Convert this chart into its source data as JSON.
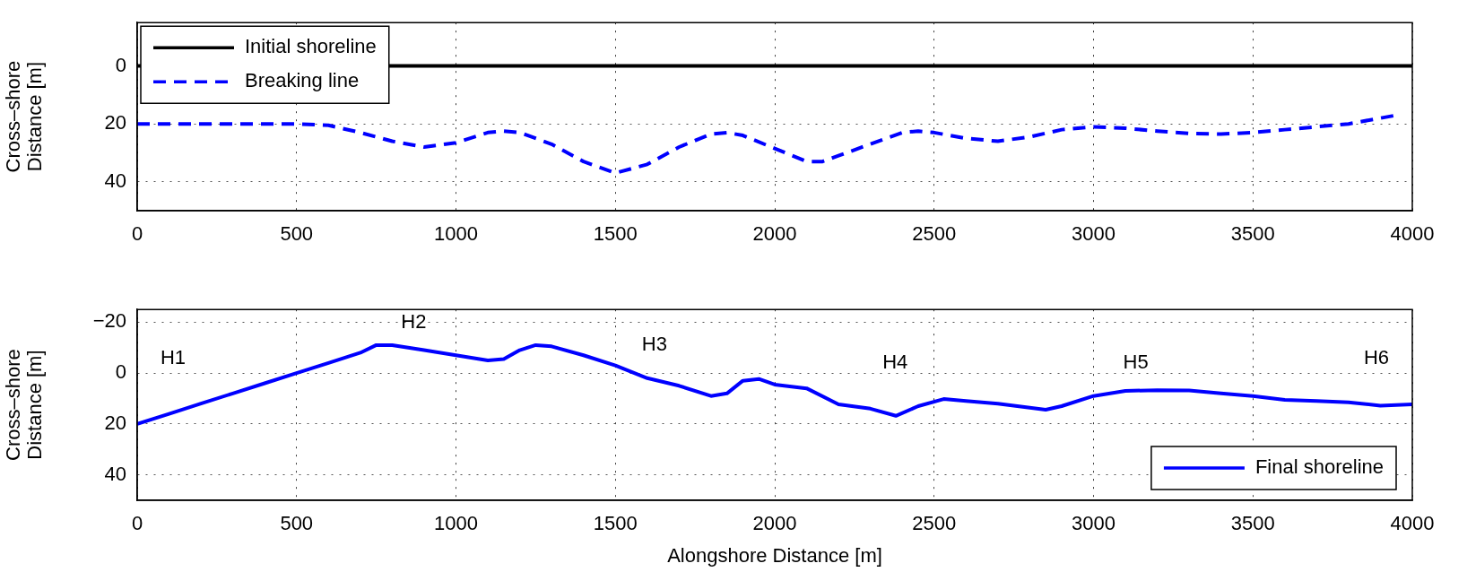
{
  "chart_data": [
    {
      "type": "line",
      "ylabel": "Cross–shore Distance [m]",
      "xlim": [
        0,
        4000
      ],
      "xticks": [
        0,
        500,
        1000,
        1500,
        2000,
        2500,
        3000,
        3500,
        4000
      ],
      "ylim": [
        50,
        -15
      ],
      "yticks": [
        0,
        20,
        40
      ],
      "grid": true,
      "legend": "top left",
      "marker": "none",
      "series": [
        {
          "name": "Initial shoreline",
          "color": "#000000",
          "line_style": "solid",
          "x": [
            0,
            4000
          ],
          "values": [
            0,
            0
          ]
        },
        {
          "name": "Breaking line",
          "color": "#0000ff",
          "line_style": "dashed",
          "x": [
            0,
            500,
            600,
            700,
            800,
            900,
            1000,
            1100,
            1150,
            1200,
            1300,
            1400,
            1500,
            1600,
            1700,
            1800,
            1850,
            1900,
            2000,
            2100,
            2150,
            2200,
            2300,
            2400,
            2450,
            2500,
            2600,
            2700,
            2800,
            2900,
            3000,
            3100,
            3200,
            3300,
            3400,
            3500,
            3600,
            3700,
            3800,
            3900,
            3950
          ],
          "values": [
            20,
            20,
            20.5,
            23,
            26,
            28,
            26.5,
            23,
            22.5,
            23,
            27,
            33,
            37,
            34,
            28,
            23.5,
            23,
            24,
            28.5,
            33,
            33,
            31,
            27,
            23,
            22.5,
            23,
            25,
            26,
            24.5,
            22,
            21,
            21.5,
            22.5,
            23.3,
            23.5,
            23,
            22,
            21,
            20,
            18,
            17
          ]
        }
      ]
    },
    {
      "type": "line",
      "xlabel": "Alongshore Distance [m]",
      "ylabel": "Cross–shore Distance [m]",
      "xlim": [
        0,
        4000
      ],
      "xticks": [
        0,
        500,
        1000,
        1500,
        2000,
        2500,
        3000,
        3500,
        4000
      ],
      "ylim": [
        50,
        -25
      ],
      "yticks": [
        -20,
        0,
        20,
        40
      ],
      "grid": true,
      "legend": "bottom right",
      "marker": "none",
      "annotations": [
        "H1",
        "H2",
        "H3",
        "H4",
        "H5",
        "H6"
      ],
      "series": [
        {
          "name": "Final shoreline",
          "color": "#0000ff",
          "line_style": "solid",
          "x": [
            0,
            100,
            200,
            300,
            400,
            500,
            600,
            700,
            750,
            800,
            900,
            1000,
            1100,
            1150,
            1200,
            1250,
            1300,
            1400,
            1500,
            1600,
            1700,
            1800,
            1850,
            1900,
            1950,
            2000,
            2100,
            2200,
            2300,
            2380,
            2450,
            2530,
            2600,
            2700,
            2850,
            2900,
            3000,
            3100,
            3200,
            3300,
            3400,
            3500,
            3600,
            3700,
            3800,
            3900,
            4000
          ],
          "values": [
            20,
            16,
            12,
            8,
            4,
            0,
            -4,
            -8,
            -11,
            -11,
            -9,
            -7,
            -5,
            -5.5,
            -9,
            -11,
            -10.5,
            -7,
            -3,
            2,
            5,
            9,
            8,
            3,
            2.3,
            4.5,
            6,
            12.3,
            14,
            16.8,
            13,
            10.2,
            11,
            12,
            14.4,
            13,
            9,
            7,
            6.7,
            6.8,
            8,
            9,
            10.5,
            11,
            11.5,
            12.8,
            12.3
          ]
        }
      ]
    }
  ]
}
